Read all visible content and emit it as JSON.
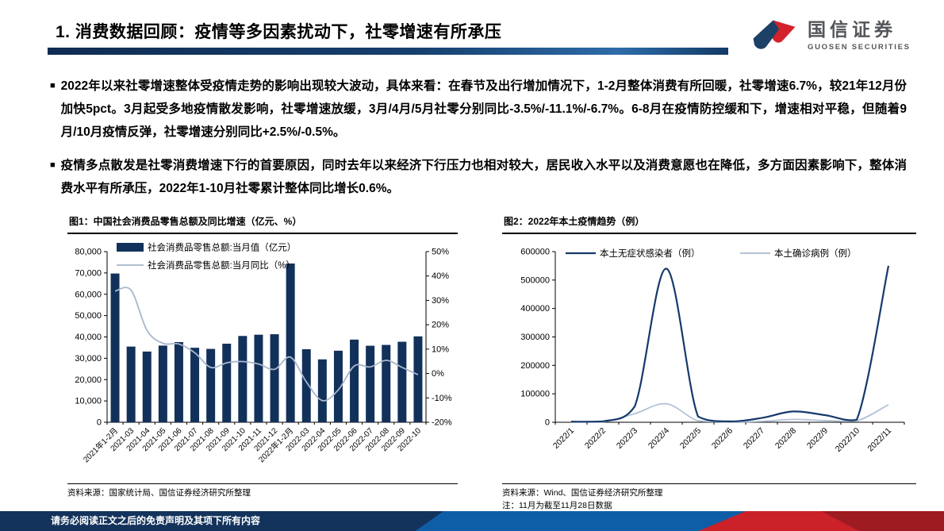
{
  "header": {
    "title": "1. 消费数据回顾：疫情等多因素扰动下，社零增速有所承压"
  },
  "logo": {
    "cn": "国信证券",
    "en": "GUOSEN SECURITIES"
  },
  "bullet_marker": "■",
  "bullets": [
    "2022年以来社零增速整体受疫情走势的影响出现较大波动，具体来看：在春节及出行增加情况下，1-2月整体消费有所回暖，社零增速6.7%，较21年12月份加快5pct。3月起受多地疫情散发影响，社零增速放缓，3月/4月/5月社零分别同比-3.5%/-11.1%/-6.7%。6-8月在疫情防控缓和下，增速相对平稳，但随着9月/10月疫情反弹，社零增速分别同比+2.5%/-0.5%。",
    "疫情多点散发是社零消费增速下行的首要原因，同时去年以来经济下行压力也相对较大，居民收入水平以及消费意愿也在降低，多方面因素影响下，整体消费水平有所承压，2022年1-10月社零累计整体同比增长0.6%。"
  ],
  "figures": [
    {
      "title": "图1：中国社会消费品零售总额及同比增速（亿元、%）",
      "source": "资料来源：国家统计局、国信证券经济研究所整理"
    },
    {
      "title": "图2：2022年本土疫情趋势（例）",
      "source": "资料来源：Wind、国信证券经济研究所整理",
      "note": "注：11月为截至11月28日数据"
    }
  ],
  "footer": {
    "disclaimer": "请务必阅读正文之后的免责声明及其项下所有内容"
  },
  "colors": {
    "navy_bar": "#12315a",
    "light_line": "#a8b7cc",
    "dark_line": "#16396b",
    "light_line2": "#b4c3d6",
    "header_navy": "#16406f",
    "footer_navy": "#14335c",
    "footer_blue": "#0e5ea7",
    "footer_red": "#cb2129",
    "footer_darkred": "#9e1b22",
    "logo_red": "#d3222a",
    "logo_navy": "#1d4066"
  },
  "chart_data": [
    {
      "type": "bar",
      "title": "图1：中国社会消费品零售总额及同比增速（亿元、%）",
      "categories": [
        "2021年1-2月",
        "2021-03",
        "2021-04",
        "2021-05",
        "2021-06",
        "2021-07",
        "2021-08",
        "2021-09",
        "2021-10",
        "2021-11",
        "2021-12",
        "2022年1-2月",
        "2022-03",
        "2022-04",
        "2022-05",
        "2022-06",
        "2022-07",
        "2022-08",
        "2022-09",
        "2022-10"
      ],
      "series": [
        {
          "name": "社会消费品零售总额:当月值（亿元）",
          "type": "bar",
          "axis": "left",
          "color": "#12315a",
          "values": [
            69737,
            35484,
            33153,
            35945,
            37586,
            34925,
            34395,
            36833,
            40454,
            41043,
            41269,
            74426,
            34233,
            29483,
            33547,
            38742,
            35870,
            36258,
            37745,
            40271
          ]
        },
        {
          "name": "社会消费品零售总额:当月同比（%）",
          "type": "line",
          "axis": "right",
          "color": "#a8b7cc",
          "values": [
            33.8,
            34.2,
            17.7,
            12.4,
            12.1,
            8.5,
            2.5,
            4.4,
            4.9,
            3.9,
            1.7,
            6.7,
            -3.5,
            -11.1,
            -6.7,
            3.1,
            2.7,
            5.4,
            2.5,
            -0.5
          ]
        }
      ],
      "left_axis": {
        "min": 0,
        "max": 80000,
        "step": 10000
      },
      "right_axis": {
        "min": -20,
        "max": 50,
        "step": 10,
        "suffix": "%"
      },
      "grid": false,
      "legend_position": "top-left"
    },
    {
      "type": "line",
      "title": "图2：2022年本土疫情趋势（例）",
      "categories": [
        "2022/1",
        "2022/2",
        "2022/3",
        "2022/4",
        "2022/5",
        "2022/6",
        "2022/7",
        "2022/8",
        "2022/9",
        "2022/10",
        "2022/11"
      ],
      "series": [
        {
          "name": "本土无症状感染者（例）",
          "color": "#16396b",
          "values": [
            2000,
            3000,
            55000,
            540000,
            20000,
            3000,
            15000,
            38000,
            25000,
            9000,
            550000
          ]
        },
        {
          "name": "本土确诊病例（例）",
          "color": "#b4c3d6",
          "values": [
            2000,
            1500,
            30000,
            65000,
            5000,
            1500,
            3000,
            10000,
            6000,
            5000,
            62000
          ]
        }
      ],
      "y_axis": {
        "min": 0,
        "max": 600000,
        "step": 100000
      },
      "grid": false,
      "legend_position": "top"
    }
  ]
}
